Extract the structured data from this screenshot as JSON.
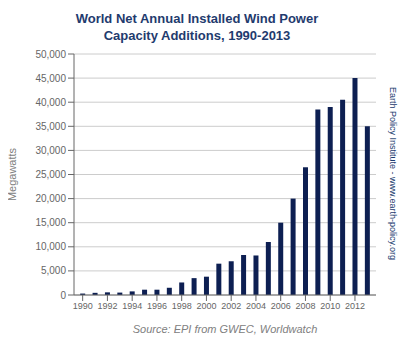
{
  "chart_data": {
    "type": "bar",
    "title": "World Net Annual Installed Wind Power\nCapacity Additions, 1990-2013",
    "xlabel": "Source: EPI from GWEC, Worldwatch",
    "ylabel": "Megawatts",
    "annotations": [
      "Earth Policy Institute - www.earth-policy.org"
    ],
    "x": [
      1990,
      1991,
      1992,
      1993,
      1994,
      1995,
      1996,
      1997,
      1998,
      1999,
      2000,
      2001,
      2002,
      2003,
      2004,
      2005,
      2006,
      2007,
      2008,
      2009,
      2010,
      2011,
      2012,
      2013
    ],
    "values": [
      300,
      450,
      550,
      500,
      750,
      1100,
      1100,
      1500,
      2600,
      3500,
      3800,
      6500,
      7000,
      8300,
      8200,
      11000,
      15000,
      20000,
      26500,
      38500,
      39000,
      40500,
      45000,
      35000
    ],
    "color": "#0d1f52",
    "xlim": [
      1989.3,
      2013.7
    ],
    "xticks": [
      1990,
      1992,
      1994,
      1996,
      1998,
      2000,
      2002,
      2004,
      2006,
      2008,
      2010,
      2012
    ],
    "ylim": [
      0,
      50000
    ],
    "yticks": [
      0,
      {
        "value": 5000,
        "label": "5,000"
      },
      {
        "value": 10000,
        "label": "10,000"
      },
      {
        "value": 15000,
        "label": "15,000"
      },
      {
        "value": 20000,
        "label": "20,000"
      },
      {
        "value": 25000,
        "label": "25,000"
      },
      {
        "value": 30000,
        "label": "30,000"
      },
      {
        "value": 35000,
        "label": "35,000"
      },
      {
        "value": 40000,
        "label": "40,000"
      },
      {
        "value": 45000,
        "label": "45,000"
      },
      {
        "value": 50000,
        "label": "50,000"
      }
    ],
    "grid": true
  }
}
